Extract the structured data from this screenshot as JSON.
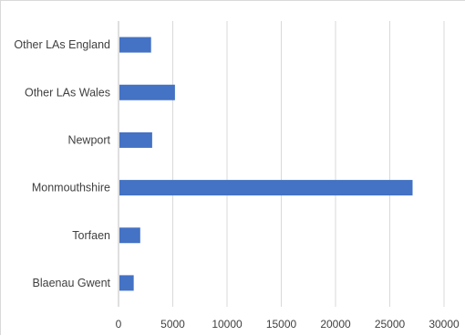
{
  "chart_data": {
    "type": "bar",
    "orientation": "horizontal",
    "title": "",
    "xlabel": "",
    "ylabel": "",
    "categories": [
      "Other LAs England",
      "Other LAs Wales",
      "Newport",
      "Monmouthshire",
      "Torfaen",
      "Blaenau Gwent"
    ],
    "values": [
      3000,
      5200,
      3100,
      27100,
      2000,
      1400
    ],
    "xlim": [
      0,
      30000
    ],
    "x_ticks": [
      0,
      5000,
      10000,
      15000,
      20000,
      25000,
      30000
    ],
    "x_tick_labels": [
      "0",
      "5000",
      "10000",
      "15000",
      "20000",
      "25000",
      "30000"
    ],
    "grid": "vertical",
    "legend": "none",
    "bar_color": "#4472C4"
  }
}
